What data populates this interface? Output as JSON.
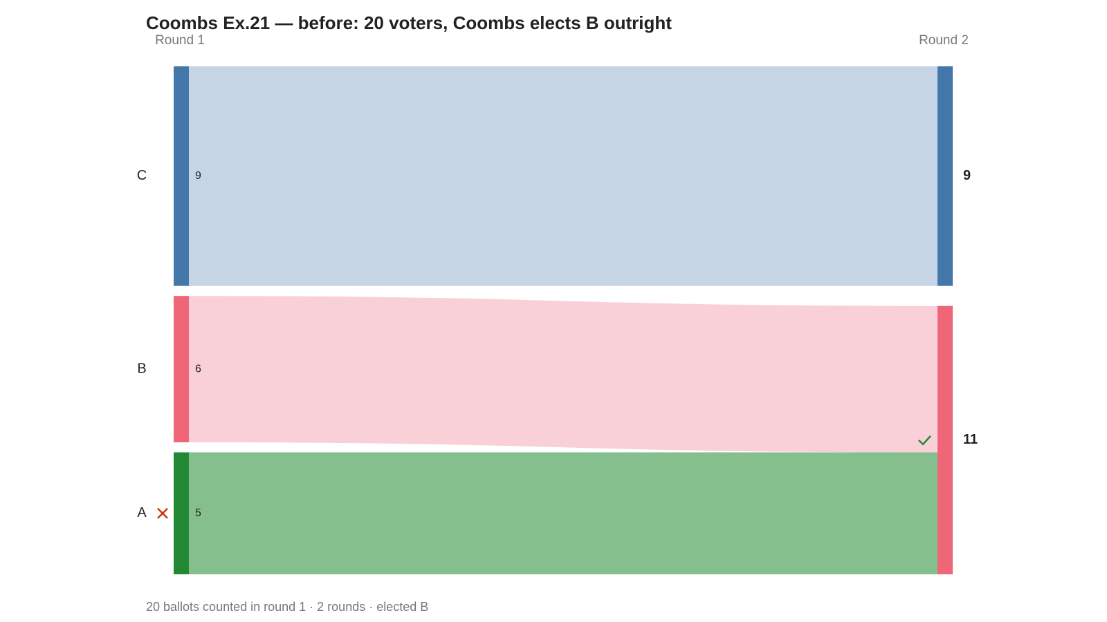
{
  "chart_data": {
    "type": "sankey",
    "title": "Coombs Ex.21 — before: 20 voters, Coombs elects B outright",
    "footer": "20 ballots counted in round 1 · 2 rounds · elected B",
    "stages": [
      {
        "label": "Round 1",
        "nodes": [
          {
            "name": "C",
            "value": 9,
            "color": "#4477aa"
          },
          {
            "name": "B",
            "value": 6,
            "color": "#ee6677"
          },
          {
            "name": "A",
            "value": 5,
            "color": "#228833",
            "eliminated": true
          }
        ]
      },
      {
        "label": "Round 2",
        "nodes": [
          {
            "value": 9,
            "color": "#4477aa"
          },
          {
            "value": 11,
            "color": "#ee6677",
            "elected": true
          }
        ]
      }
    ],
    "links": [
      {
        "source": 0,
        "target": 0,
        "value": 9,
        "color": "#c5d5e5"
      },
      {
        "source": 1,
        "target": 1,
        "value": 6,
        "color": "#f9d0d7"
      },
      {
        "source": 2,
        "target": 1,
        "value": 5,
        "color": "#86bf8e"
      }
    ]
  }
}
